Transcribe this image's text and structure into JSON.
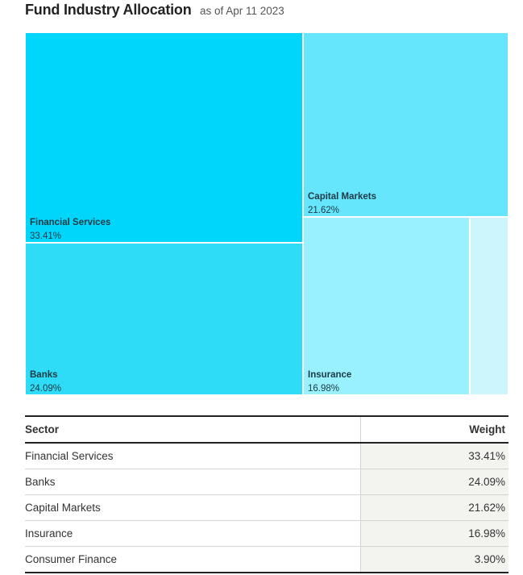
{
  "header": {
    "title": "Fund Industry Allocation",
    "subtitle": "as of Apr 11 2023"
  },
  "chart_data": {
    "type": "treemap",
    "title": "Fund Industry Allocation",
    "subtitle": "as of Apr 11 2023",
    "items": [
      {
        "name": "Financial Services",
        "value": 33.41,
        "label": "33.41%",
        "color": "#00d6fc"
      },
      {
        "name": "Banks",
        "value": 24.09,
        "label": "24.09%",
        "color": "#2edcf8"
      },
      {
        "name": "Capital Markets",
        "value": 21.62,
        "label": "21.62%",
        "color": "#66e6fc"
      },
      {
        "name": "Insurance",
        "value": 16.98,
        "label": "16.98%",
        "color": "#99f0fe"
      },
      {
        "name": "Consumer Finance",
        "value": 3.9,
        "label": "3.90%",
        "color": "#ccf6fc"
      }
    ]
  },
  "table": {
    "headers": {
      "sector": "Sector",
      "weight": "Weight"
    },
    "rows": [
      {
        "sector": "Financial Services",
        "weight": "33.41%"
      },
      {
        "sector": "Banks",
        "weight": "24.09%"
      },
      {
        "sector": "Capital Markets",
        "weight": "21.62%"
      },
      {
        "sector": "Insurance",
        "weight": "16.98%"
      },
      {
        "sector": "Consumer Finance",
        "weight": "3.90%"
      }
    ]
  }
}
